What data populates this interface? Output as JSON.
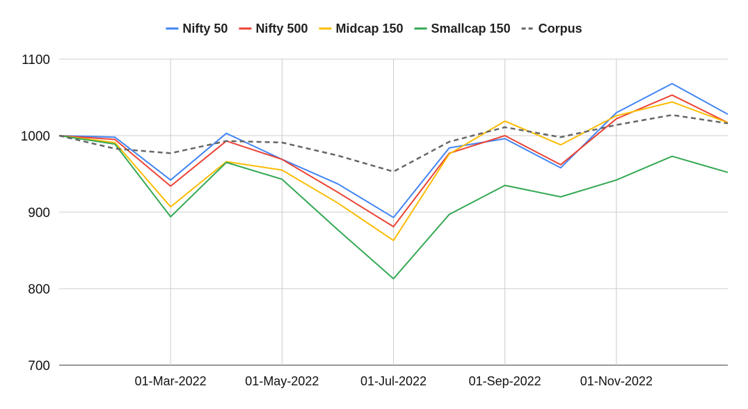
{
  "chart_data": {
    "type": "line",
    "title": "",
    "xlabel": "",
    "ylabel": "",
    "ylim": [
      700,
      1100
    ],
    "yticks": [
      "700",
      "800",
      "900",
      "1000",
      "1100"
    ],
    "x": [
      "01-Jan-2022",
      "01-Feb-2022",
      "01-Mar-2022",
      "01-Apr-2022",
      "01-May-2022",
      "01-Jun-2022",
      "01-Jul-2022",
      "01-Aug-2022",
      "01-Sep-2022",
      "01-Oct-2022",
      "01-Nov-2022",
      "01-Dec-2022",
      "01-Jan-2023"
    ],
    "xticks": [
      "01-Mar-2022",
      "01-May-2022",
      "01-Jul-2022",
      "01-Sep-2022",
      "01-Nov-2022"
    ],
    "grid": true,
    "legend_position": "top",
    "series": [
      {
        "name": "Nifty 50",
        "color": "#4285F4",
        "dash": false,
        "values": [
          1000,
          998,
          942,
          1003,
          969,
          937,
          893,
          984,
          996,
          958,
          1030,
          1068,
          1028
        ]
      },
      {
        "name": "Nifty 500",
        "color": "#EA4335",
        "dash": false,
        "values": [
          1000,
          995,
          934,
          993,
          969,
          926,
          881,
          977,
          1000,
          962,
          1022,
          1053,
          1017
        ]
      },
      {
        "name": "Midcap 150",
        "color": "#FBBC04",
        "dash": false,
        "values": [
          1000,
          991,
          907,
          966,
          955,
          912,
          863,
          976,
          1019,
          988,
          1026,
          1044,
          1017
        ]
      },
      {
        "name": "Smallcap 150",
        "color": "#34A853",
        "dash": false,
        "values": [
          1000,
          989,
          894,
          965,
          943,
          877,
          813,
          897,
          935,
          920,
          942,
          973,
          952
        ]
      },
      {
        "name": "Corpus",
        "color": "#666666",
        "dash": true,
        "values": [
          1000,
          983,
          977,
          993,
          991,
          974,
          953,
          992,
          1011,
          998,
          1014,
          1027,
          1016
        ]
      }
    ]
  }
}
